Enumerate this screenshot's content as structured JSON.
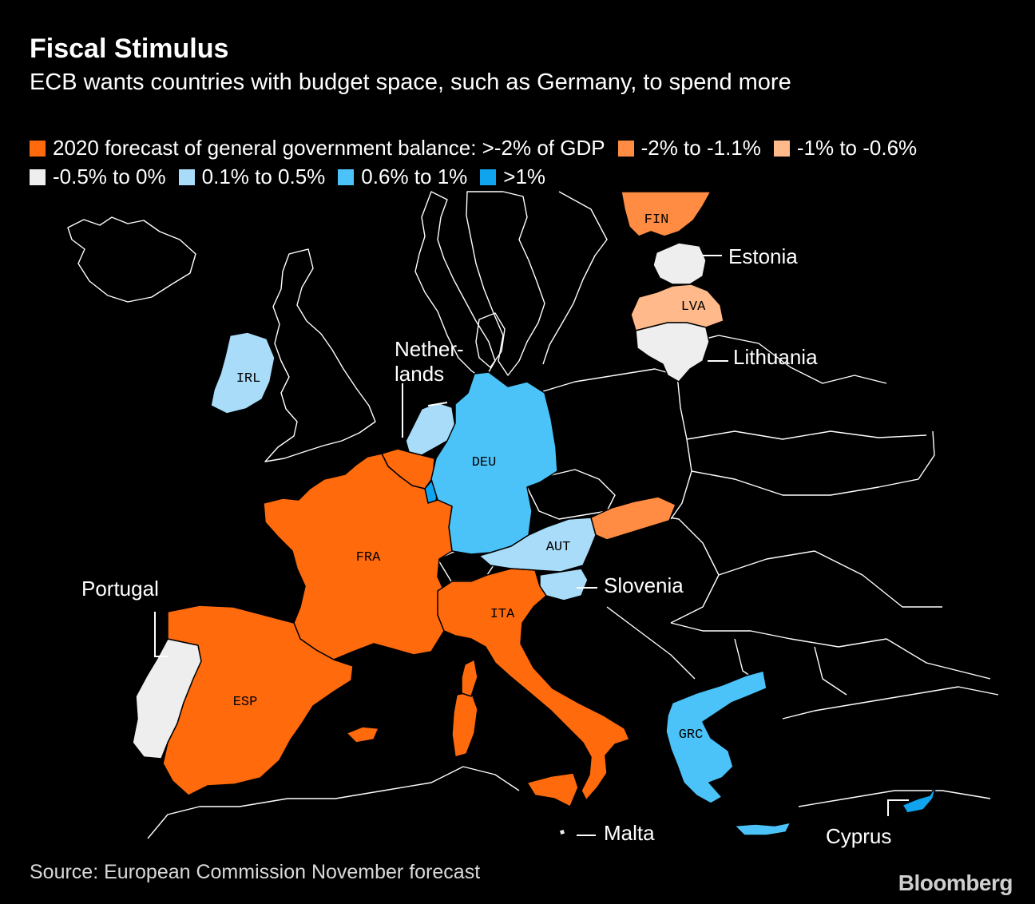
{
  "header": {
    "title": "Fiscal Stimulus",
    "subtitle": "ECB wants countries with budget space, such as Germany, to spend more"
  },
  "legend": [
    {
      "label": "2020 forecast of general government balance: >-2% of GDP",
      "color": "#ff6a0d"
    },
    {
      "label": "-2% to -1.1%",
      "color": "#ff8c42"
    },
    {
      "label": "-1% to -0.6%",
      "color": "#ffb98a"
    },
    {
      "label": "-0.5% to 0%",
      "color": "#eeeeee"
    },
    {
      "label": "0.1% to 0.5%",
      "color": "#a8dcf8"
    },
    {
      "label": "0.6% to 1%",
      "color": "#4cc3f8"
    },
    {
      "label": ">1%",
      "color": "#10a4ee"
    }
  ],
  "countries": {
    "fin": {
      "code": "FIN",
      "color": "#ff8c42"
    },
    "est": {
      "name": "Estonia",
      "color": "#eeeeee"
    },
    "lva": {
      "code": "LVA",
      "color": "#ffb98a"
    },
    "ltu": {
      "name": "Lithuania",
      "color": "#eeeeee"
    },
    "irl": {
      "code": "IRL",
      "color": "#a8dcf8"
    },
    "nld": {
      "name": "Nether-\nlands",
      "color": "#a8dcf8"
    },
    "bel": {
      "color": "#ff6a0d"
    },
    "lux": {
      "color": "#10a4ee"
    },
    "deu": {
      "code": "DEU",
      "color": "#4cc3f8"
    },
    "fra": {
      "code": "FRA",
      "color": "#ff6a0d"
    },
    "aut": {
      "code": "AUT",
      "color": "#a8dcf8"
    },
    "svk": {
      "color": "#ff8c42"
    },
    "svn": {
      "name": "Slovenia",
      "color": "#a8dcf8"
    },
    "ita": {
      "code": "ITA",
      "color": "#ff6a0d"
    },
    "prt": {
      "name": "Portugal",
      "color": "#eeeeee"
    },
    "esp": {
      "code": "ESP",
      "color": "#ff6a0d"
    },
    "mlt": {
      "name": "Malta",
      "color": "#eeeeee"
    },
    "grc": {
      "code": "GRC",
      "color": "#4cc3f8"
    },
    "cyp": {
      "name": "Cyprus",
      "color": "#10a4ee"
    }
  },
  "footer": {
    "source": "Source: European Commission November forecast",
    "brand": "Bloomberg"
  }
}
